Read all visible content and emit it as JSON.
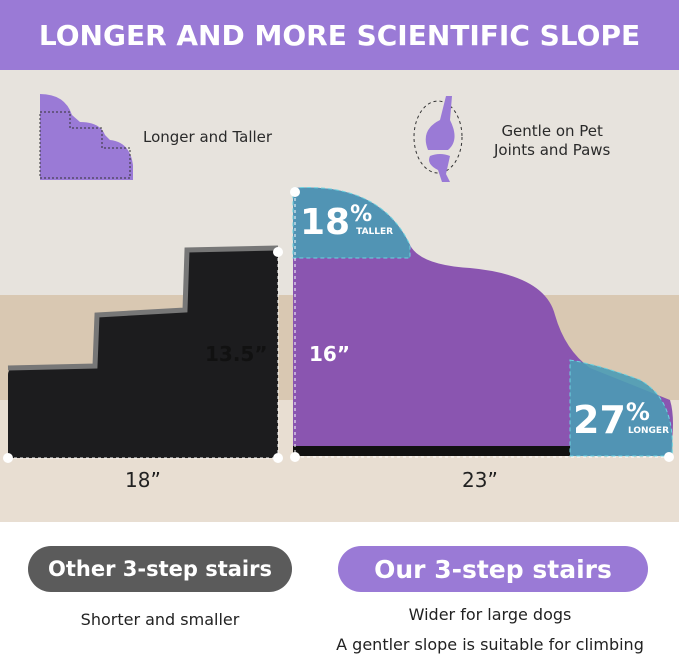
{
  "header": {
    "title": "LONGER AND MORE SCIENTIFIC SLOPE"
  },
  "features": [
    {
      "icon": "stair-outline-icon",
      "label": "Longer and Taller"
    },
    {
      "icon": "knee-joint-icon",
      "label_line1": "Gentle on Pet",
      "label_line2": "Joints and Paws"
    }
  ],
  "other_stairs": {
    "height": "13.5”",
    "length": "18”"
  },
  "our_stairs": {
    "height": "16”",
    "length": "23”",
    "taller_pct": "18",
    "taller_label": "TALLER",
    "longer_pct": "27",
    "longer_label": "LONGER",
    "percent_sign": "%"
  },
  "comparison": {
    "other": {
      "title": "Other 3-step stairs",
      "lines": [
        "Shorter and smaller"
      ]
    },
    "ours": {
      "title": "Our 3-step stairs",
      "lines": [
        "Wider for large dogs",
        "A gentler slope is suitable for climbing"
      ]
    }
  },
  "colors": {
    "brand_purple": "#9a7ad6",
    "gray_pill": "#5b5b5b",
    "teal_highlight": "#4fa3b8"
  }
}
